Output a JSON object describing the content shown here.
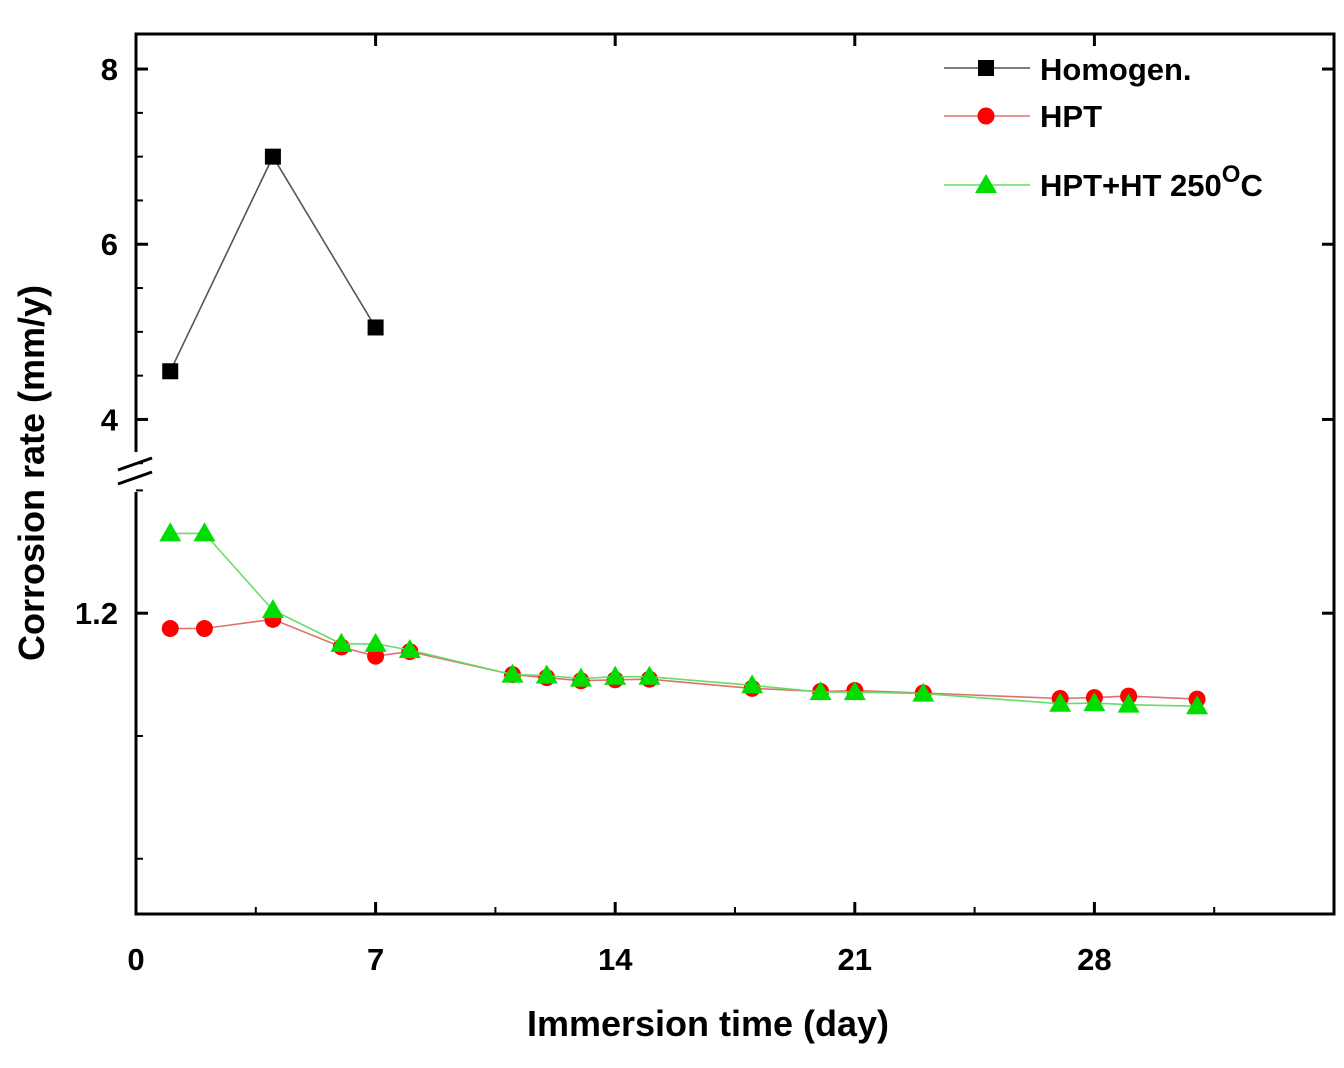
{
  "chart_data": {
    "type": "line",
    "title": "",
    "xlabel": "Immersion time (day)",
    "ylabel": "Corrosion rate (mm/y)",
    "xlim": [
      0,
      35
    ],
    "ylim_upper": [
      3.4,
      8.4
    ],
    "ylim_lower": [
      0.22,
      1.66
    ],
    "axis_break": "between 1.66 and 3.4",
    "xticks": [
      0,
      7,
      14,
      21,
      28
    ],
    "xtick_labels": [
      "0",
      "7",
      "14",
      "21",
      "28"
    ],
    "yticks_upper": [
      4,
      6,
      8
    ],
    "ytick_labels_upper": [
      "4",
      "6",
      "8"
    ],
    "yticks_lower": [
      1.2
    ],
    "ytick_labels_lower": [
      "1.2"
    ],
    "grid": false,
    "legend_position": "top-right",
    "legend": [
      "Homogen.",
      "HPT",
      "HPT+HT 250°C"
    ],
    "series": [
      {
        "name": "Homogen.",
        "marker": "square",
        "color": "#000000",
        "line_color": "#555555",
        "x": [
          1,
          4,
          7
        ],
        "y": [
          4.55,
          7.0,
          5.05
        ]
      },
      {
        "name": "HPT",
        "marker": "circle",
        "color": "#ff0000",
        "line_color": "#e07070",
        "x": [
          1,
          2,
          4,
          6,
          7,
          8,
          11,
          12,
          13,
          14,
          15,
          18,
          20,
          21,
          23,
          27,
          28,
          29,
          31
        ],
        "y": [
          1.15,
          1.15,
          1.18,
          1.09,
          1.06,
          1.075,
          1.0,
          0.99,
          0.98,
          0.983,
          0.985,
          0.955,
          0.945,
          0.948,
          0.94,
          0.922,
          0.925,
          0.93,
          0.92
        ]
      },
      {
        "name": "HPT+HT 250°C",
        "marker": "triangle",
        "color": "#00dd00",
        "line_color": "#66dd66",
        "x": [
          1,
          2,
          4,
          6,
          7,
          8,
          11,
          12,
          13,
          14,
          15,
          18,
          20,
          21,
          23,
          27,
          28,
          29,
          31
        ],
        "y": [
          1.46,
          1.46,
          1.21,
          1.1,
          1.1,
          1.08,
          1.0,
          0.997,
          0.987,
          0.993,
          0.993,
          0.965,
          0.943,
          0.943,
          0.938,
          0.905,
          0.907,
          0.902,
          0.897
        ]
      }
    ],
    "legend_labels": {
      "homogen": "Homogen.",
      "hpt": "HPT",
      "hpt_ht_base": "HPT+HT 250",
      "hpt_ht_sup": "O",
      "hpt_ht_unit": "C"
    }
  }
}
